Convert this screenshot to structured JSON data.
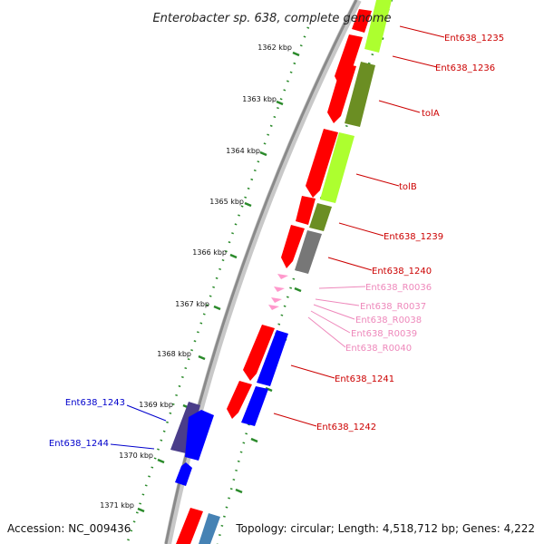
{
  "title": "Enterobacter sp. 638, complete genome",
  "footer": {
    "accession": "Accession: NC_009436",
    "topology": "Topology: circular; Length: 4,518,712 bp; Genes: 4,222"
  },
  "colors": {
    "backbone": "#999999",
    "tick_dots": "#2a8a2a",
    "feature_red": "#ff0000",
    "feature_blue": "#0000ff",
    "feature_purple": "#4a3d8a",
    "feature_olive": "#6b8e23",
    "feature_lime": "#adff2f",
    "feature_gray": "#777777",
    "feature_pink": "#ff99cc",
    "feature_steelblue": "#4682b4",
    "label_red": "#cc0000",
    "label_pink": "#ee88bb",
    "label_blue": "#0000cc"
  },
  "kbp_labels": [
    "1362 kbp",
    "1363 kbp",
    "1364 kbp",
    "1365 kbp",
    "1366 kbp",
    "1367 kbp",
    "1368 kbp",
    "1369 kbp",
    "1370 kbp",
    "1371 kbp"
  ],
  "gene_labels": [
    {
      "text": "Ent638_1235",
      "color": "red"
    },
    {
      "text": "Ent638_1236",
      "color": "red"
    },
    {
      "text": "tolA",
      "color": "red"
    },
    {
      "text": "tolB",
      "color": "red"
    },
    {
      "text": "Ent638_1239",
      "color": "red"
    },
    {
      "text": "Ent638_1240",
      "color": "red"
    },
    {
      "text": "Ent638_R0036",
      "color": "pink"
    },
    {
      "text": "Ent638_R0037",
      "color": "pink"
    },
    {
      "text": "Ent638_R0038",
      "color": "pink"
    },
    {
      "text": "Ent638_R0039",
      "color": "pink"
    },
    {
      "text": "Ent638_R0040",
      "color": "pink"
    },
    {
      "text": "Ent638_1241",
      "color": "red"
    },
    {
      "text": "Ent638_1242",
      "color": "red"
    },
    {
      "text": "Ent638_1243",
      "color": "blue"
    },
    {
      "text": "Ent638_1244",
      "color": "blue"
    }
  ]
}
